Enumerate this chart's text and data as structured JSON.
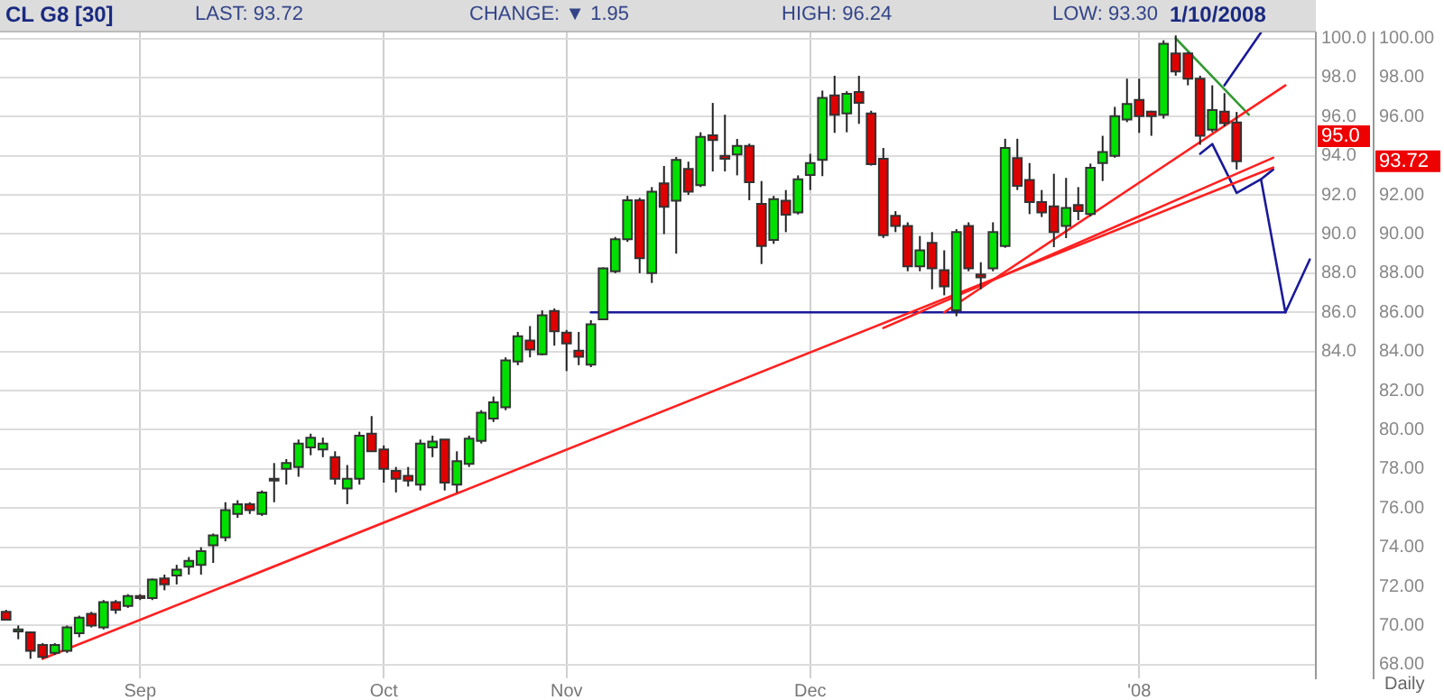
{
  "chart_data": {
    "type": "candlestick",
    "title": "CL G8 [30]",
    "annotations": [
      "LAST: 93.72",
      "CHANGE: ▼ 1.95",
      "HIGH: 96.24",
      "LOW: 93.30",
      "1/10/2008",
      "Daily",
      {
        "text": "95.0",
        "y": 95.0
      },
      "93.72"
    ],
    "categories": [
      null,
      null,
      null,
      null,
      null,
      null,
      null,
      null,
      null,
      null,
      null,
      "Sep",
      null,
      null,
      null,
      null,
      null,
      null,
      null,
      null,
      null,
      null,
      null,
      null,
      null,
      null,
      null,
      null,
      null,
      null,
      null,
      "Oct",
      null,
      null,
      null,
      null,
      null,
      null,
      null,
      null,
      null,
      null,
      null,
      null,
      null,
      null,
      "Nov",
      null,
      null,
      null,
      null,
      null,
      null,
      null,
      null,
      null,
      null,
      null,
      null,
      null,
      null,
      null,
      null,
      null,
      null,
      null,
      "Dec",
      null,
      null,
      null,
      null,
      null,
      null,
      null,
      null,
      null,
      null,
      null,
      null,
      null,
      null,
      null,
      null,
      null,
      null,
      null,
      null,
      null,
      null,
      null,
      null,
      null,
      null,
      "'08",
      null,
      null,
      null,
      null,
      null,
      null,
      null,
      null,
      null,
      null,
      null,
      null,
      null,
      null
    ],
    "ohlc": [
      [
        70.7,
        70.8,
        70.3,
        70.3
      ],
      [
        69.7,
        70.0,
        69.3,
        69.8
      ],
      [
        69.65,
        69.7,
        68.3,
        68.7
      ],
      [
        69.0,
        69.1,
        68.3,
        68.4
      ],
      [
        68.6,
        69.1,
        68.5,
        69.0
      ],
      [
        68.7,
        70.0,
        68.6,
        69.9
      ],
      [
        69.6,
        70.5,
        69.4,
        70.4
      ],
      [
        70.6,
        70.7,
        69.9,
        70.0
      ],
      [
        69.9,
        71.3,
        69.8,
        71.2
      ],
      [
        71.2,
        71.3,
        70.6,
        70.8
      ],
      [
        71.0,
        71.6,
        70.9,
        71.5
      ],
      [
        71.5,
        71.6,
        71.3,
        71.4
      ],
      [
        71.4,
        72.4,
        71.3,
        72.35
      ],
      [
        72.4,
        72.6,
        71.8,
        72.1
      ],
      [
        72.55,
        73.1,
        72.1,
        72.85
      ],
      [
        73.0,
        73.5,
        72.6,
        73.3
      ],
      [
        73.1,
        74.0,
        72.6,
        73.8
      ],
      [
        74.1,
        74.7,
        73.2,
        74.6
      ],
      [
        74.5,
        76.3,
        74.3,
        75.9
      ],
      [
        75.7,
        76.4,
        75.5,
        76.2
      ],
      [
        76.2,
        76.3,
        75.7,
        75.9
      ],
      [
        75.7,
        76.9,
        75.6,
        76.8
      ],
      [
        77.5,
        78.3,
        76.3,
        77.4
      ],
      [
        78.0,
        78.5,
        77.2,
        78.3
      ],
      [
        78.1,
        79.5,
        77.6,
        79.3
      ],
      [
        79.1,
        79.8,
        78.7,
        79.6
      ],
      [
        79.0,
        79.6,
        78.6,
        79.3
      ],
      [
        78.6,
        78.9,
        77.2,
        77.5
      ],
      [
        77.0,
        78.2,
        76.2,
        77.5
      ],
      [
        77.5,
        79.9,
        77.2,
        79.7
      ],
      [
        79.8,
        80.7,
        78.9,
        78.9
      ],
      [
        79.0,
        79.2,
        77.3,
        78.0
      ],
      [
        77.9,
        78.1,
        76.8,
        77.5
      ],
      [
        77.65,
        78.1,
        77.1,
        77.4
      ],
      [
        77.2,
        79.5,
        76.9,
        79.3
      ],
      [
        79.1,
        79.7,
        78.6,
        79.4
      ],
      [
        79.5,
        79.5,
        76.9,
        77.3
      ],
      [
        77.2,
        78.9,
        76.8,
        78.4
      ],
      [
        78.26,
        79.7,
        78.1,
        79.55
      ],
      [
        79.43,
        81.0,
        79.3,
        80.87
      ],
      [
        80.57,
        81.7,
        80.4,
        81.4
      ],
      [
        81.15,
        83.7,
        81.0,
        83.55
      ],
      [
        83.49,
        85.0,
        83.3,
        84.78
      ],
      [
        84.56,
        85.3,
        83.7,
        84.1
      ],
      [
        83.86,
        86.1,
        83.8,
        85.85
      ],
      [
        86.07,
        86.2,
        84.3,
        85.03
      ],
      [
        84.96,
        85.1,
        83.0,
        84.41
      ],
      [
        84.04,
        85.0,
        83.3,
        83.73
      ],
      [
        83.33,
        85.6,
        83.2,
        85.39
      ],
      [
        85.64,
        88.3,
        85.6,
        88.25
      ],
      [
        88.1,
        89.85,
        88.0,
        89.73
      ],
      [
        89.73,
        91.95,
        89.6,
        91.73
      ],
      [
        91.73,
        91.85,
        88.0,
        88.77
      ],
      [
        88.01,
        92.4,
        87.5,
        92.16
      ],
      [
        92.59,
        93.48,
        90.0,
        91.39
      ],
      [
        91.7,
        93.94,
        89.0,
        93.79
      ],
      [
        93.33,
        93.7,
        92.0,
        92.16
      ],
      [
        92.5,
        95.2,
        92.4,
        94.96
      ],
      [
        95.05,
        96.7,
        93.2,
        94.8
      ],
      [
        94.0,
        96.1,
        93.2,
        93.85
      ],
      [
        94.07,
        94.86,
        93.0,
        94.5
      ],
      [
        94.5,
        94.62,
        91.73,
        92.65
      ],
      [
        91.54,
        92.71,
        88.47,
        89.39
      ],
      [
        89.7,
        91.95,
        89.5,
        91.79
      ],
      [
        91.7,
        92.25,
        90.1,
        90.99
      ],
      [
        91.11,
        93.0,
        91.0,
        92.8
      ],
      [
        93.02,
        94.1,
        92.25,
        93.63
      ],
      [
        93.79,
        97.33,
        92.96,
        96.96
      ],
      [
        97.08,
        98.09,
        95.17,
        96.1
      ],
      [
        96.16,
        97.3,
        95.2,
        97.17
      ],
      [
        97.26,
        98.09,
        95.63,
        96.71
      ],
      [
        96.16,
        96.3,
        93.5,
        93.57
      ],
      [
        93.85,
        94.4,
        89.8,
        89.94
      ],
      [
        90.93,
        91.17,
        90.1,
        90.41
      ],
      [
        90.41,
        90.6,
        88.1,
        88.35
      ],
      [
        88.35,
        89.9,
        88.1,
        89.17
      ],
      [
        89.55,
        90.1,
        87.18,
        88.25
      ],
      [
        88.16,
        89.17,
        86.87,
        87.33
      ],
      [
        86.1,
        90.25,
        85.8,
        90.1
      ],
      [
        90.41,
        90.6,
        88.1,
        88.25
      ],
      [
        87.94,
        88.56,
        87.18,
        87.79
      ],
      [
        88.25,
        90.6,
        88.1,
        90.1
      ],
      [
        89.39,
        94.87,
        89.3,
        94.4
      ],
      [
        93.88,
        94.87,
        92.25,
        92.47
      ],
      [
        92.77,
        93.63,
        91.02,
        91.64
      ],
      [
        91.64,
        92.25,
        90.87,
        91.11
      ],
      [
        91.42,
        93.08,
        89.33,
        90.1
      ],
      [
        90.41,
        92.87,
        89.79,
        91.33
      ],
      [
        91.48,
        92.4,
        90.71,
        91.17
      ],
      [
        91.02,
        93.6,
        90.9,
        93.39
      ],
      [
        93.63,
        95.02,
        92.71,
        94.19
      ],
      [
        94.0,
        96.5,
        93.9,
        96.03
      ],
      [
        95.85,
        97.94,
        95.72,
        96.65
      ],
      [
        96.86,
        97.94,
        95.17,
        96.03
      ],
      [
        96.25,
        96.3,
        95.02,
        96.03
      ],
      [
        96.1,
        99.9,
        95.9,
        99.72
      ],
      [
        99.23,
        100.15,
        98.09,
        98.31
      ],
      [
        99.23,
        99.3,
        97.6,
        97.94
      ],
      [
        97.94,
        98.09,
        94.56,
        95.02
      ],
      [
        95.33,
        97.6,
        95.2,
        96.34
      ],
      [
        96.25,
        97.2,
        95.5,
        95.67
      ],
      [
        95.7,
        96.24,
        93.3,
        93.72
      ],
      null,
      null,
      null,
      null,
      null,
      null
    ],
    "colors": [
      "#e00000",
      "#00e000",
      "#e00000",
      "#e00000",
      "#00e000",
      "#00e000",
      "#00e000",
      "#e00000",
      "#00e000",
      "#e00000",
      "#00e000",
      "#e00000",
      "#00e000",
      "#e00000",
      "#00e000",
      "#00e000",
      "#00e000",
      "#00e000",
      "#00e000",
      "#00e000",
      "#e00000",
      "#00e000",
      "#e00000",
      "#00e000",
      "#00e000",
      "#00e000",
      "#00e000",
      "#e00000",
      "#00e000",
      "#00e000",
      "#e00000",
      "#e00000",
      "#e00000",
      "#e00000",
      "#00e000",
      "#00e000",
      "#e00000",
      "#00e000",
      "#00e000",
      "#00e000",
      "#00e000",
      "#00e000",
      "#00e000",
      "#e00000",
      "#00e000",
      "#e00000",
      "#e00000",
      "#e00000",
      "#00e000",
      "#00e000",
      "#00e000",
      "#00e000",
      "#e00000",
      "#00e000",
      "#e00000",
      "#00e000",
      "#e00000",
      "#00e000",
      "#e00000",
      "#e00000",
      "#00e000",
      "#e00000",
      "#e00000",
      "#00e000",
      "#e00000",
      "#00e000",
      "#00e000",
      "#00e000",
      "#e00000",
      "#00e000",
      "#e00000",
      "#e00000",
      "#e00000",
      "#e00000",
      "#e00000",
      "#00e000",
      "#e00000",
      "#e00000",
      "#00e000",
      "#e00000",
      "#e00000",
      "#00e000",
      "#00e000",
      "#e00000",
      "#e00000",
      "#e00000",
      "#e00000",
      "#00e000",
      "#e00000",
      "#00e000",
      "#00e000",
      "#00e000",
      "#00e000",
      "#e00000",
      "#e00000",
      "#00e000",
      "#e00000",
      "#e00000",
      "#e00000",
      "#00e000",
      "#e00000",
      "#e00000",
      null,
      null,
      null,
      null,
      null,
      null
    ],
    "series": [
      {
        "type": "line",
        "color": "#ff2020",
        "values": [
          null,
          null,
          null,
          68.3,
          null,
          null,
          null,
          null,
          null,
          null,
          null,
          null,
          null,
          null,
          null,
          null,
          null,
          null,
          null,
          null,
          null,
          null,
          null,
          null,
          null,
          null,
          null,
          null,
          null,
          null,
          null,
          null,
          null,
          null,
          null,
          null,
          null,
          null,
          null,
          null,
          null,
          null,
          null,
          null,
          null,
          null,
          null,
          null,
          null,
          null,
          null,
          null,
          null,
          null,
          null,
          null,
          null,
          null,
          null,
          null,
          null,
          null,
          null,
          null,
          null,
          null,
          null,
          null,
          null,
          null,
          null,
          null,
          null,
          null,
          null,
          null,
          null,
          null,
          null,
          null,
          null,
          null,
          null,
          null,
          null,
          null,
          null,
          null,
          null,
          null,
          null,
          null,
          null,
          null,
          null,
          null,
          null,
          null,
          null,
          null,
          null,
          null,
          null,
          null,
          93.4,
          null,
          null,
          null
        ]
      },
      {
        "type": "line",
        "color": "#ff2020",
        "values": [
          null,
          null,
          null,
          null,
          null,
          null,
          null,
          null,
          null,
          null,
          null,
          null,
          null,
          null,
          null,
          null,
          null,
          null,
          null,
          null,
          null,
          null,
          null,
          null,
          null,
          null,
          null,
          null,
          null,
          null,
          null,
          null,
          null,
          null,
          null,
          null,
          null,
          null,
          null,
          null,
          null,
          null,
          null,
          null,
          null,
          null,
          null,
          null,
          null,
          null,
          null,
          null,
          null,
          null,
          null,
          null,
          null,
          null,
          null,
          null,
          null,
          null,
          null,
          null,
          null,
          null,
          null,
          null,
          null,
          null,
          null,
          null,
          85.2,
          null,
          null,
          null,
          null,
          null,
          null,
          null,
          null,
          null,
          null,
          null,
          null,
          null,
          null,
          null,
          null,
          null,
          null,
          null,
          null,
          null,
          null,
          null,
          null,
          null,
          null,
          null,
          null,
          null,
          null,
          null,
          93.9,
          null,
          null,
          null
        ]
      },
      {
        "type": "line",
        "color": "#ff2020",
        "values": [
          null,
          null,
          null,
          null,
          null,
          null,
          null,
          null,
          null,
          null,
          null,
          null,
          null,
          null,
          null,
          null,
          null,
          null,
          null,
          null,
          null,
          null,
          null,
          null,
          null,
          null,
          null,
          null,
          null,
          null,
          null,
          null,
          null,
          null,
          null,
          null,
          null,
          null,
          null,
          null,
          null,
          null,
          null,
          null,
          null,
          null,
          null,
          null,
          null,
          null,
          null,
          null,
          null,
          null,
          null,
          null,
          null,
          null,
          null,
          null,
          null,
          null,
          null,
          null,
          null,
          null,
          null,
          null,
          null,
          null,
          null,
          null,
          null,
          null,
          null,
          null,
          null,
          86.0,
          null,
          null,
          null,
          null,
          null,
          null,
          null,
          null,
          null,
          null,
          null,
          null,
          null,
          null,
          null,
          null,
          null,
          null,
          null,
          null,
          null,
          null,
          null,
          null,
          null,
          null,
          null,
          97.6,
          null,
          null
        ]
      },
      {
        "type": "line",
        "color": "#1a1a99",
        "values": [
          null,
          null,
          null,
          null,
          null,
          null,
          null,
          null,
          null,
          null,
          null,
          null,
          null,
          null,
          null,
          null,
          null,
          null,
          null,
          null,
          null,
          null,
          null,
          null,
          null,
          null,
          null,
          null,
          null,
          null,
          null,
          null,
          null,
          null,
          null,
          null,
          null,
          null,
          null,
          null,
          null,
          null,
          null,
          null,
          null,
          null,
          null,
          null,
          86.0,
          null,
          null,
          null,
          null,
          null,
          null,
          null,
          null,
          null,
          null,
          null,
          null,
          null,
          null,
          null,
          null,
          null,
          null,
          null,
          null,
          null,
          null,
          null,
          null,
          null,
          null,
          null,
          null,
          null,
          null,
          null,
          null,
          null,
          null,
          null,
          null,
          null,
          null,
          null,
          null,
          null,
          null,
          null,
          null,
          null,
          null,
          null,
          null,
          null,
          null,
          null,
          null,
          null,
          null,
          null,
          null,
          86.0,
          null,
          null
        ]
      },
      {
        "type": "line",
        "color": "#339933",
        "values": [
          null,
          null,
          null,
          null,
          null,
          null,
          null,
          null,
          null,
          null,
          null,
          null,
          null,
          null,
          null,
          null,
          null,
          null,
          null,
          null,
          null,
          null,
          null,
          null,
          null,
          null,
          null,
          null,
          null,
          null,
          null,
          null,
          null,
          null,
          null,
          null,
          null,
          null,
          null,
          null,
          null,
          null,
          null,
          null,
          null,
          null,
          null,
          null,
          null,
          null,
          null,
          null,
          null,
          null,
          null,
          null,
          null,
          null,
          null,
          null,
          null,
          null,
          null,
          null,
          null,
          null,
          null,
          null,
          null,
          null,
          null,
          null,
          null,
          null,
          null,
          null,
          null,
          null,
          null,
          null,
          null,
          null,
          null,
          null,
          null,
          null,
          null,
          null,
          null,
          null,
          null,
          null,
          null,
          null,
          null,
          null,
          100.0,
          null,
          null,
          null,
          null,
          null,
          96.1,
          null,
          null,
          null,
          null,
          null
        ]
      },
      {
        "type": "line",
        "color": "#1a1a99",
        "values": [
          null,
          null,
          null,
          null,
          null,
          null,
          null,
          null,
          null,
          null,
          null,
          null,
          null,
          null,
          null,
          null,
          null,
          null,
          null,
          null,
          null,
          null,
          null,
          null,
          null,
          null,
          null,
          null,
          null,
          null,
          null,
          null,
          null,
          null,
          null,
          null,
          null,
          null,
          null,
          null,
          null,
          null,
          null,
          null,
          null,
          null,
          null,
          null,
          null,
          null,
          null,
          null,
          null,
          null,
          null,
          null,
          null,
          null,
          null,
          null,
          null,
          null,
          null,
          null,
          null,
          null,
          null,
          null,
          null,
          null,
          null,
          null,
          null,
          null,
          null,
          null,
          null,
          null,
          null,
          null,
          null,
          null,
          null,
          null,
          null,
          null,
          null,
          null,
          null,
          null,
          null,
          null,
          null,
          null,
          null,
          null,
          null,
          null,
          null,
          null,
          97.6,
          null,
          null,
          100.3,
          null,
          null,
          null,
          null
        ]
      },
      {
        "type": "line",
        "color": "#1a1a99",
        "values": [
          null,
          null,
          null,
          null,
          null,
          null,
          null,
          null,
          null,
          null,
          null,
          null,
          null,
          null,
          null,
          null,
          null,
          null,
          null,
          null,
          null,
          null,
          null,
          null,
          null,
          null,
          null,
          null,
          null,
          null,
          null,
          null,
          null,
          null,
          null,
          null,
          null,
          null,
          null,
          null,
          null,
          null,
          null,
          null,
          null,
          null,
          null,
          null,
          null,
          null,
          null,
          null,
          null,
          null,
          null,
          null,
          null,
          null,
          null,
          null,
          null,
          null,
          null,
          null,
          null,
          null,
          null,
          null,
          null,
          null,
          null,
          null,
          null,
          null,
          null,
          null,
          null,
          null,
          null,
          null,
          null,
          null,
          null,
          null,
          null,
          null,
          null,
          null,
          null,
          null,
          null,
          null,
          null,
          null,
          null,
          null,
          null,
          null,
          94.1,
          94.6,
          null,
          92.1,
          null,
          92.8,
          93.3,
          null,
          null,
          null
        ]
      },
      {
        "type": "line",
        "color": "#1a1a99",
        "values": [
          null,
          null,
          null,
          null,
          null,
          null,
          null,
          null,
          null,
          null,
          null,
          null,
          null,
          null,
          null,
          null,
          null,
          null,
          null,
          null,
          null,
          null,
          null,
          null,
          null,
          null,
          null,
          null,
          null,
          null,
          null,
          null,
          null,
          null,
          null,
          null,
          null,
          null,
          null,
          null,
          null,
          null,
          null,
          null,
          null,
          null,
          null,
          null,
          null,
          null,
          null,
          null,
          null,
          null,
          null,
          null,
          null,
          null,
          null,
          null,
          null,
          null,
          null,
          null,
          null,
          null,
          null,
          null,
          null,
          null,
          null,
          null,
          null,
          null,
          null,
          null,
          null,
          null,
          null,
          null,
          null,
          null,
          null,
          null,
          null,
          null,
          null,
          null,
          null,
          null,
          null,
          null,
          null,
          null,
          null,
          null,
          null,
          null,
          null,
          null,
          null,
          null,
          null,
          92.8,
          null,
          86.0,
          null,
          88.7
        ]
      }
    ],
    "ylim": [
      67.3,
      100.3
    ],
    "yticks": [
      {
        "value": 68,
        "label": "68.00"
      },
      {
        "value": 70,
        "label": "70.00"
      },
      {
        "value": 72,
        "label": "72.00"
      },
      {
        "value": 74,
        "label": "74.00"
      },
      {
        "value": 76,
        "label": "76.00"
      },
      {
        "value": 78,
        "label": "78.00"
      },
      {
        "value": 80,
        "label": "80.00"
      },
      {
        "value": 82,
        "label": "82.00"
      },
      {
        "value": 84,
        "label": "84.00"
      },
      {
        "value": 86,
        "label": "86.00"
      },
      {
        "value": 88,
        "label": "88.00"
      },
      {
        "value": 90,
        "label": "90.00"
      },
      {
        "value": 92,
        "label": "92.00"
      },
      {
        "value": 94,
        "label": null
      },
      {
        "value": 96,
        "label": "96.00"
      },
      {
        "value": 98,
        "label": "98.00"
      },
      {
        "value": 100,
        "label": "100.00"
      }
    ],
    "y2lim": [
      67.3,
      100.3
    ],
    "y2ticks": [
      {
        "value": 84,
        "label": "84.0"
      },
      {
        "value": 86,
        "label": "86.0"
      },
      {
        "value": 88,
        "label": "88.0"
      },
      {
        "value": 90,
        "label": "90.0"
      },
      {
        "value": 92,
        "label": "92.0"
      },
      {
        "value": 94,
        "label": "94.0"
      },
      {
        "value": 96,
        "label": "96.0"
      },
      {
        "value": 98,
        "label": "98.0"
      },
      {
        "value": 100,
        "label": "100.0"
      }
    ],
    "grid": true,
    "legend": false,
    "marker": "none",
    "line_style": "solid"
  }
}
